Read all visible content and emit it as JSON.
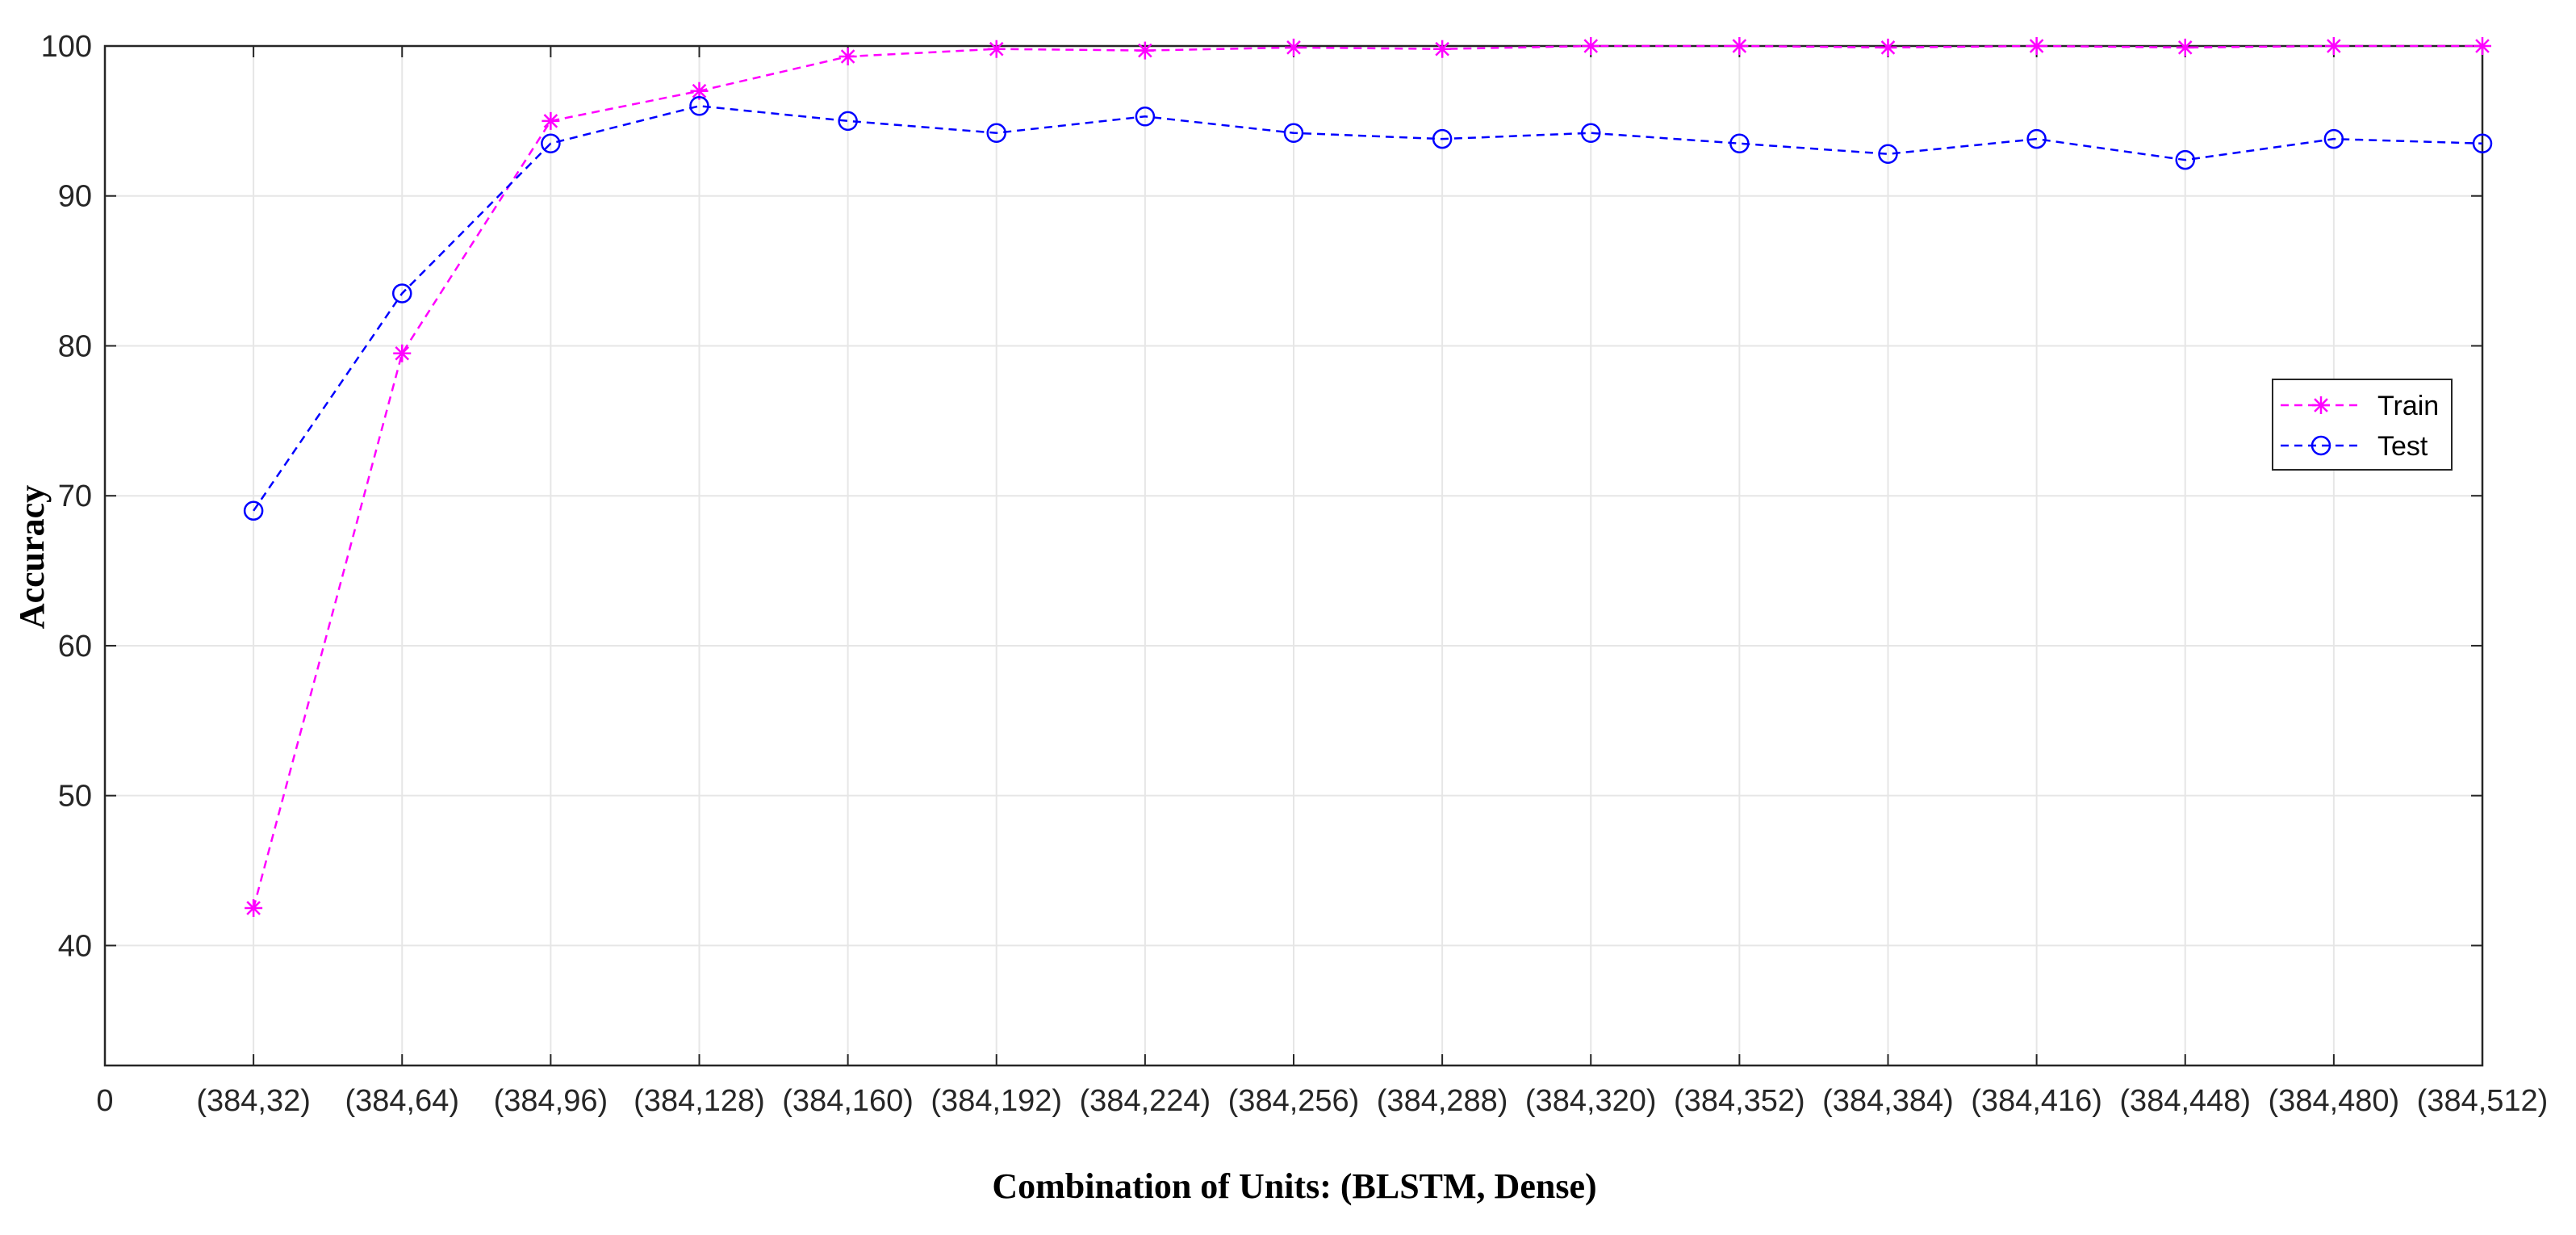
{
  "chart_data": {
    "type": "line",
    "title": "",
    "xlabel": "Combination of Units: (BLSTM, Dense)",
    "ylabel": "Accuracy",
    "x_origin_label": "0",
    "categories": [
      "(384,32)",
      "(384,64)",
      "(384,96)",
      "(384,128)",
      "(384,160)",
      "(384,192)",
      "(384,224)",
      "(384,256)",
      "(384,288)",
      "(384,320)",
      "(384,352)",
      "(384,384)",
      "(384,416)",
      "(384,448)",
      "(384,480)",
      "(384,512)"
    ],
    "yticks": [
      40,
      50,
      60,
      70,
      80,
      90,
      100
    ],
    "ylim": [
      32,
      100
    ],
    "grid": true,
    "legend_position": "right",
    "series": [
      {
        "name": "Train",
        "color": "#ff00ff",
        "marker": "asterisk",
        "line": "dashed",
        "values": [
          42.5,
          79.5,
          95.0,
          97.0,
          99.3,
          99.8,
          99.7,
          99.9,
          99.8,
          100.0,
          100.0,
          99.9,
          100.0,
          99.9,
          100.0,
          100.0
        ]
      },
      {
        "name": "Test",
        "color": "#0000ff",
        "marker": "circle",
        "line": "dashed",
        "values": [
          69.0,
          83.5,
          93.5,
          96.0,
          95.0,
          94.2,
          95.3,
          94.2,
          93.8,
          94.2,
          93.5,
          92.8,
          93.8,
          92.4,
          93.8,
          93.5
        ]
      }
    ]
  }
}
